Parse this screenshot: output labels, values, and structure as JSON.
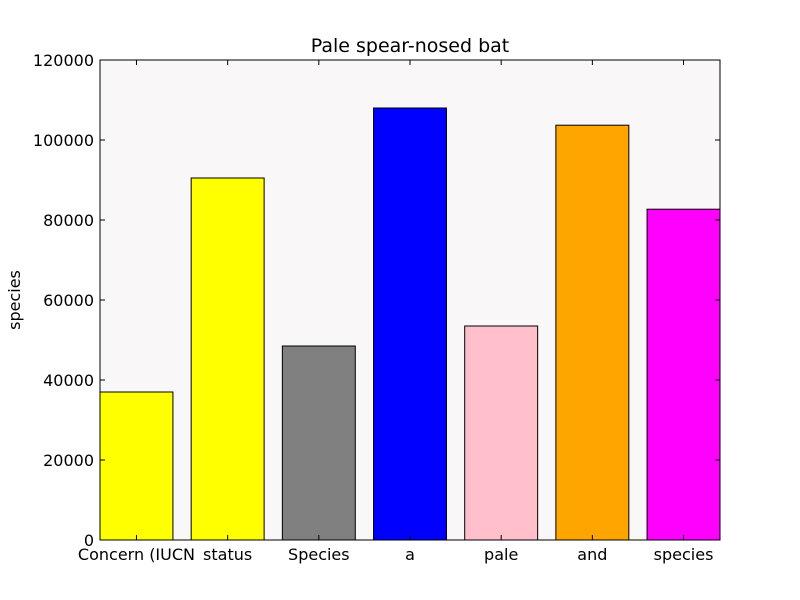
{
  "chart_data": {
    "type": "bar",
    "title": "Pale spear-nosed bat",
    "xlabel": "",
    "ylabel": "species",
    "ylim": [
      0,
      120000
    ],
    "yticks": [
      0,
      20000,
      40000,
      60000,
      80000,
      100000,
      120000
    ],
    "categories": [
      "Concern (IUCN",
      "status",
      "Species",
      "a",
      "pale",
      "and",
      "species"
    ],
    "values": [
      37000,
      90500,
      48500,
      108000,
      53500,
      103700,
      82700
    ],
    "colors": [
      "#ffff00",
      "#ffff00",
      "#808080",
      "#0000ff",
      "#ffc0cb",
      "#ffa500",
      "#ff00ff"
    ],
    "plot_background": "#f9f7f7",
    "grid": false,
    "legend": "none"
  }
}
